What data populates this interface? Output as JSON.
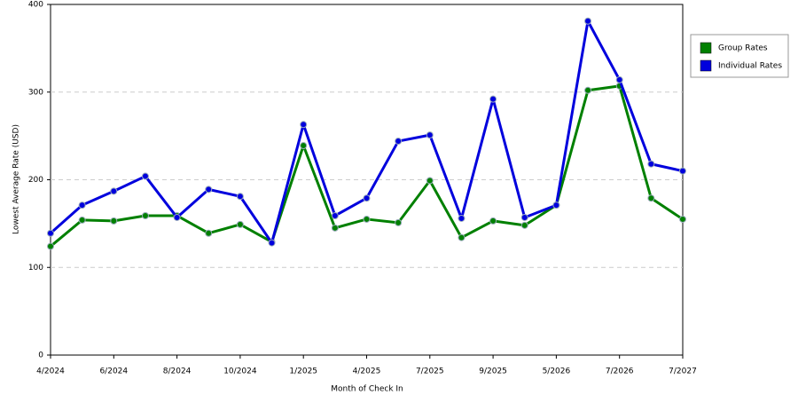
{
  "chart_data": {
    "type": "line",
    "x_label": "Month of Check In",
    "y_label": "Lowest Average Rate (USD)",
    "categories": [
      "4/2024",
      null,
      "6/2024",
      null,
      "8/2024",
      null,
      "10/2024",
      null,
      "1/2025",
      null,
      "4/2025",
      null,
      "7/2025",
      null,
      "9/2025",
      null,
      "5/2026",
      null,
      "7/2026",
      null,
      "7/2027"
    ],
    "series": [
      {
        "name": "Group Rates",
        "color": "#008000",
        "values": [
          124,
          154,
          153,
          159,
          159,
          139,
          149,
          129,
          239,
          145,
          155,
          151,
          199,
          134,
          153,
          148,
          171,
          302,
          307,
          179,
          155
        ]
      },
      {
        "name": "Individual Rates",
        "color": "#0000dd",
        "values": [
          139,
          171,
          187,
          204,
          157,
          189,
          181,
          128,
          263,
          159,
          179,
          244,
          251,
          156,
          292,
          157,
          171,
          381,
          314,
          218,
          210
        ]
      }
    ],
    "ylim": [
      0,
      400
    ],
    "yticks": [
      0,
      100,
      200,
      300,
      400
    ],
    "grid": true,
    "legend": "right"
  }
}
